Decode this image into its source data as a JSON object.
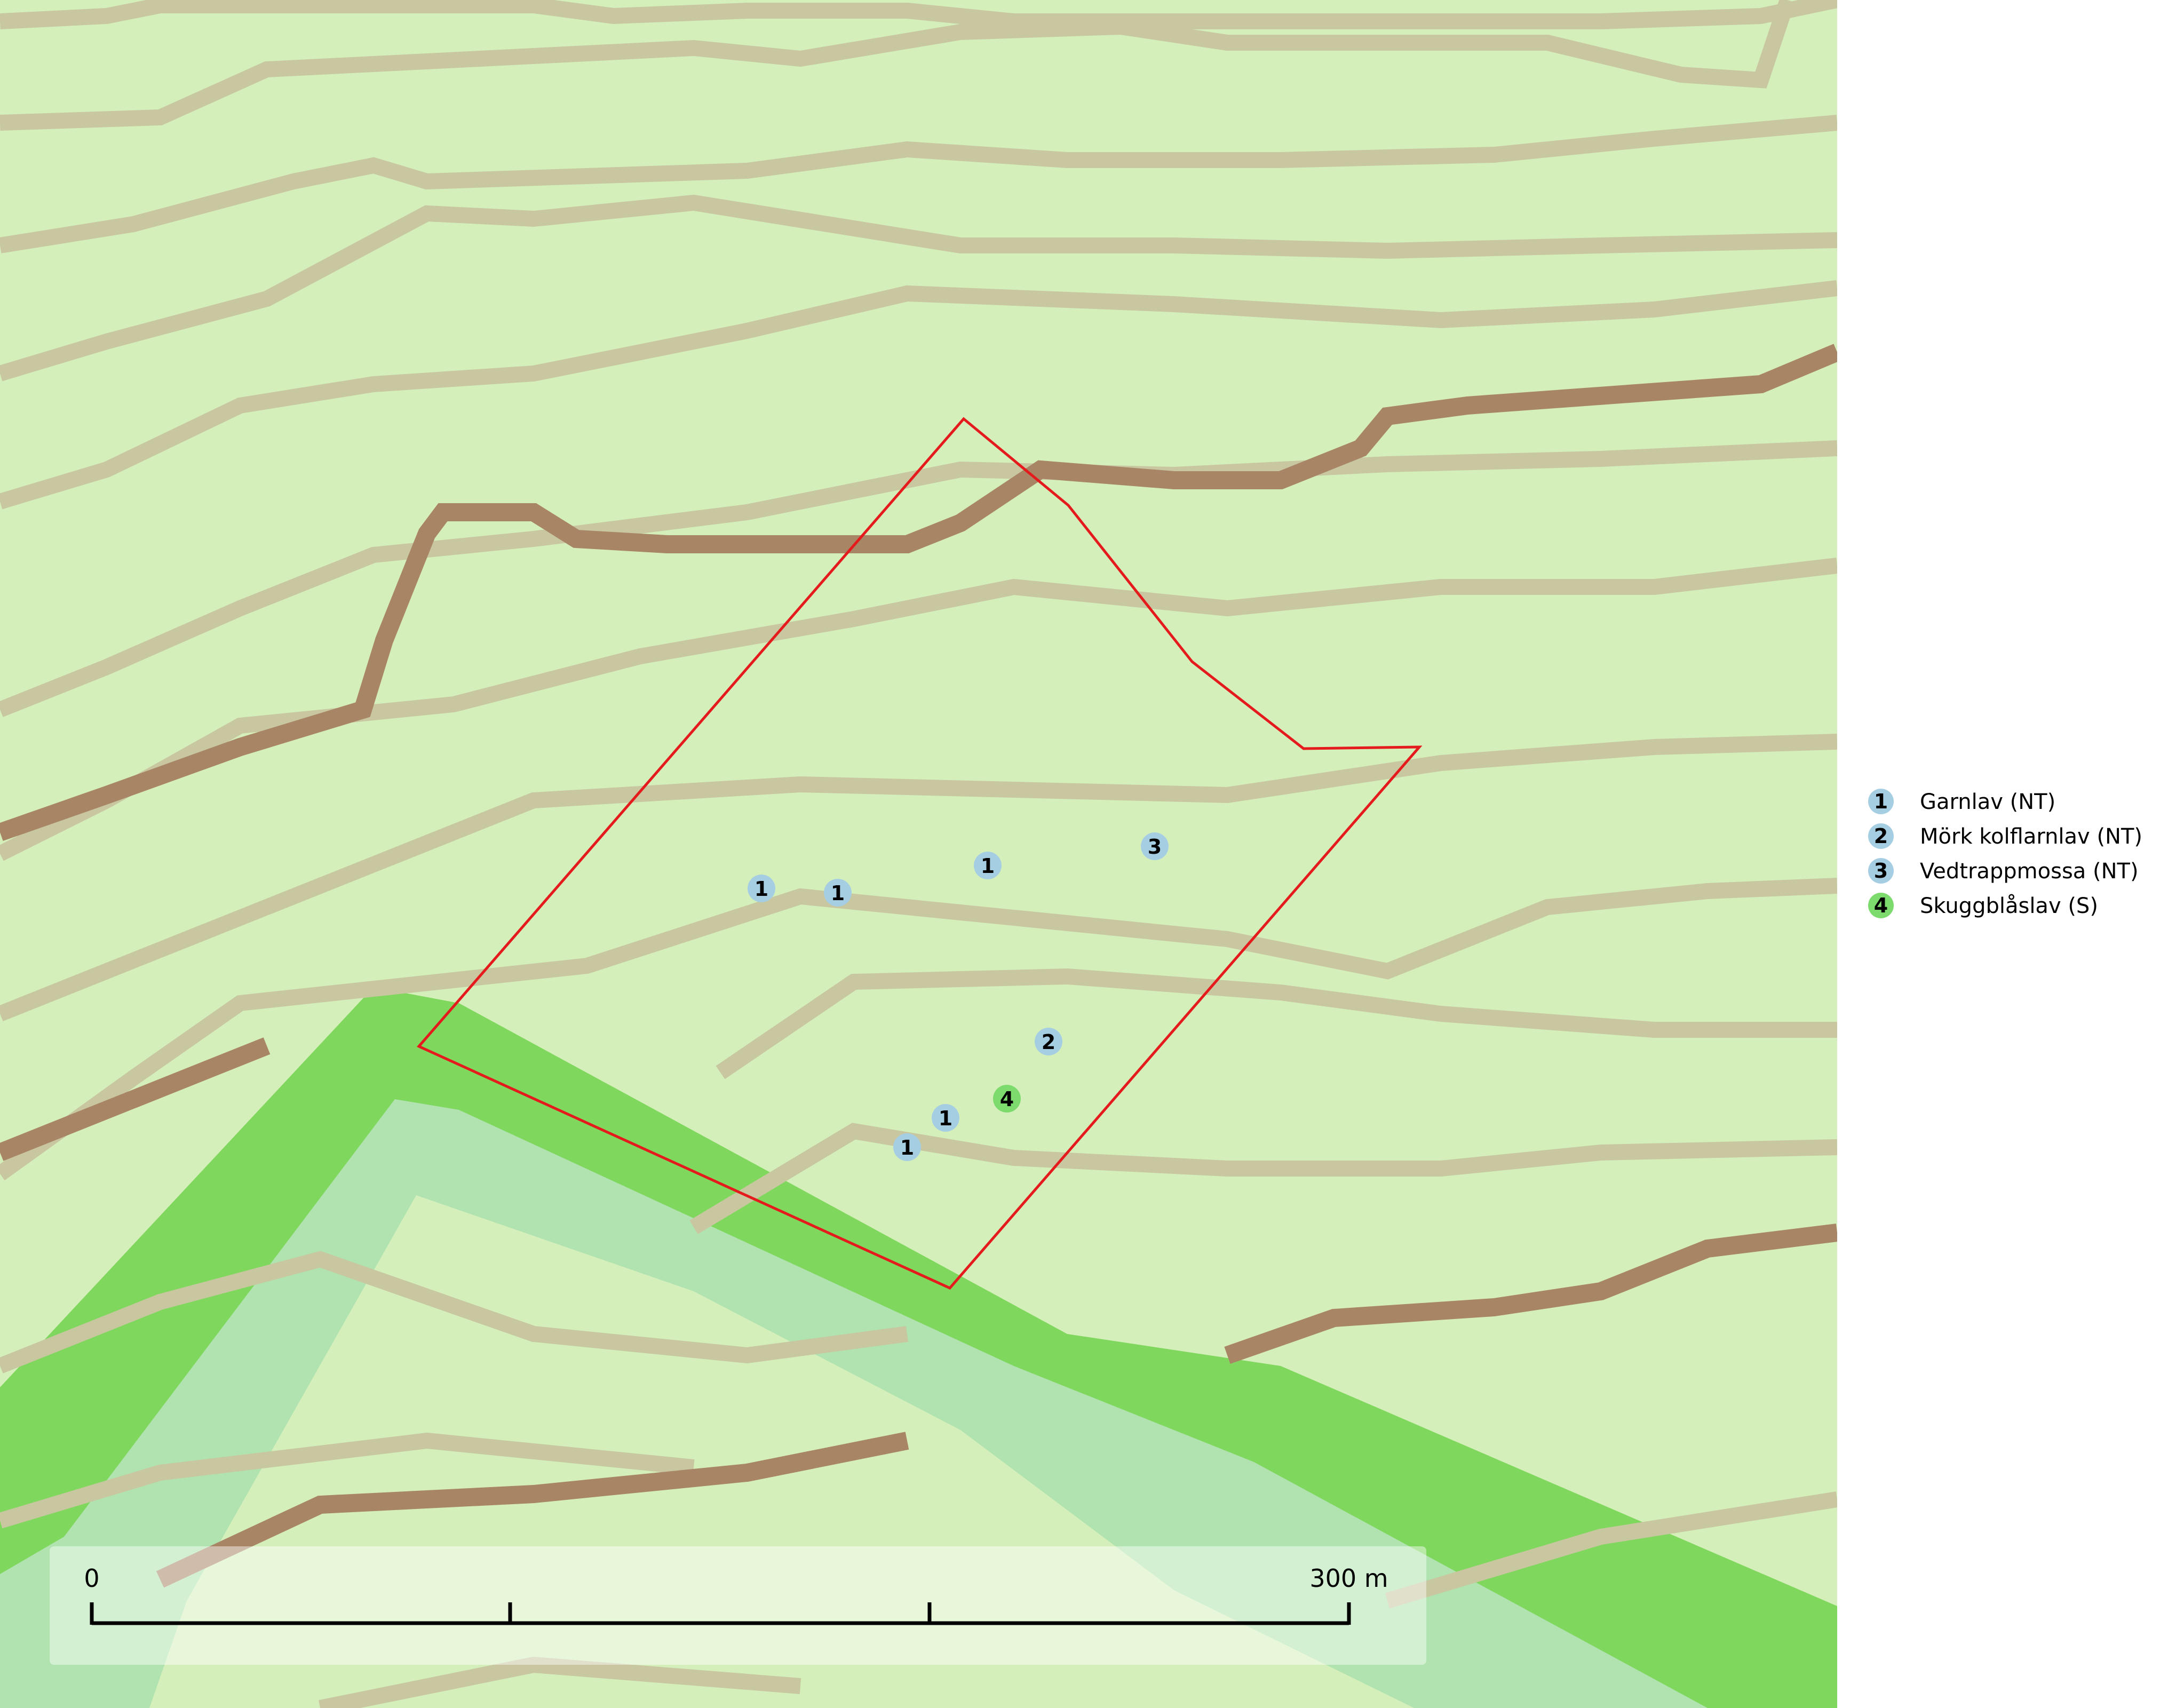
{
  "map": {
    "colors": {
      "background": "#d5efbb",
      "contour_light": "#c8c7a0",
      "contour_index": "#a88565",
      "wetland_dark": "#7fd75d",
      "wetland_light": "#b0e3b0",
      "boundary": "#e41a1c",
      "marker_nt": "#a6cee3",
      "marker_s": "#7ddb6e"
    }
  },
  "markers": [
    {
      "category": "1"
    },
    {
      "category": "1"
    },
    {
      "category": "1"
    },
    {
      "category": "3"
    },
    {
      "category": "2"
    },
    {
      "category": "4"
    },
    {
      "category": "1"
    },
    {
      "category": "1"
    }
  ],
  "legend": {
    "items": [
      {
        "number": "1",
        "label": "Garnlav (NT)",
        "color": "#a6cee3"
      },
      {
        "number": "2",
        "label": "Mörk kolflarnlav (NT)",
        "color": "#a6cee3"
      },
      {
        "number": "3",
        "label": "Vedtrappmossa (NT)",
        "color": "#a6cee3"
      },
      {
        "number": "4",
        "label": "Skuggblåslav (S)",
        "color": "#7ddb6e"
      }
    ]
  },
  "scalebar": {
    "start_label": "0",
    "end_label": "300 m"
  }
}
